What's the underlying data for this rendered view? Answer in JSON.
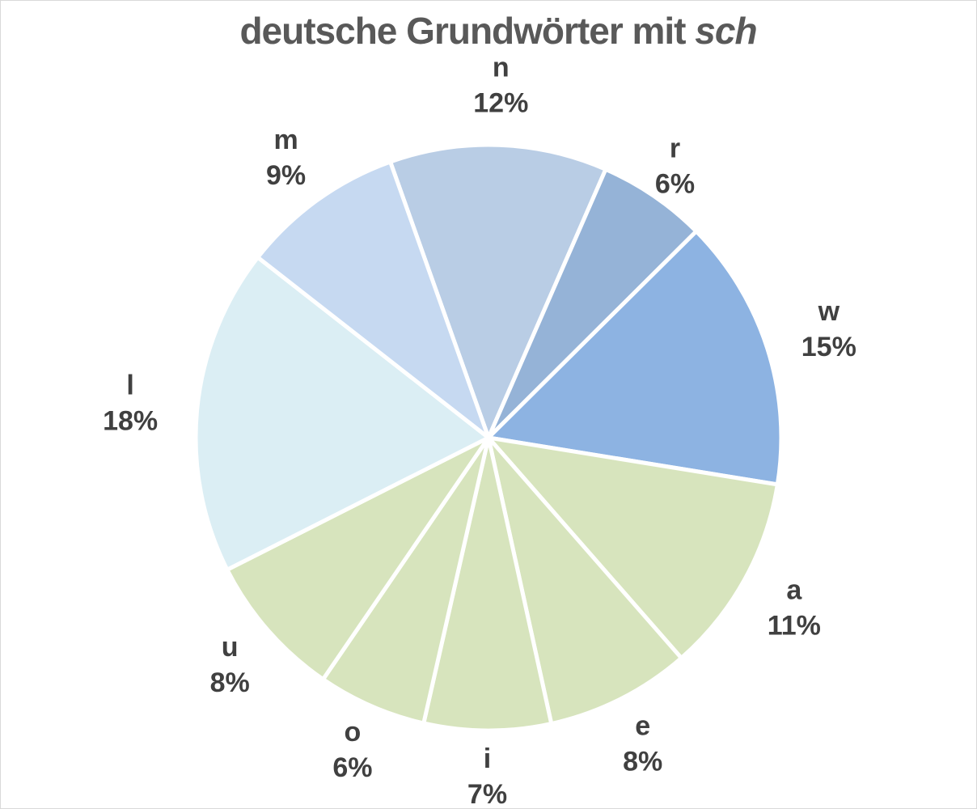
{
  "chart_data": {
    "type": "pie",
    "title": "deutsche Grundwörter mit",
    "title_italic": "sch",
    "slices": [
      {
        "label": "n",
        "value": 12,
        "percent_label": "12%",
        "color": "#b9cde5"
      },
      {
        "label": "r",
        "value": 6,
        "percent_label": "6%",
        "color": "#95b3d7"
      },
      {
        "label": "w",
        "value": 15,
        "percent_label": "15%",
        "color": "#8db3e2"
      },
      {
        "label": "a",
        "value": 11,
        "percent_label": "11%",
        "color": "#d7e4bd"
      },
      {
        "label": "e",
        "value": 8,
        "percent_label": "8%",
        "color": "#d7e4bd"
      },
      {
        "label": "i",
        "value": 7,
        "percent_label": "7%",
        "color": "#d7e4bd"
      },
      {
        "label": "o",
        "value": 6,
        "percent_label": "6%",
        "color": "#d7e4bd"
      },
      {
        "label": "u",
        "value": 8,
        "percent_label": "8%",
        "color": "#d7e4bd"
      },
      {
        "label": "l",
        "value": 18,
        "percent_label": "18%",
        "color": "#dbeef4"
      },
      {
        "label": "m",
        "value": 9,
        "percent_label": "9%",
        "color": "#c6d9f1"
      }
    ],
    "legend": "none",
    "slice_border_color": "#ffffff"
  }
}
